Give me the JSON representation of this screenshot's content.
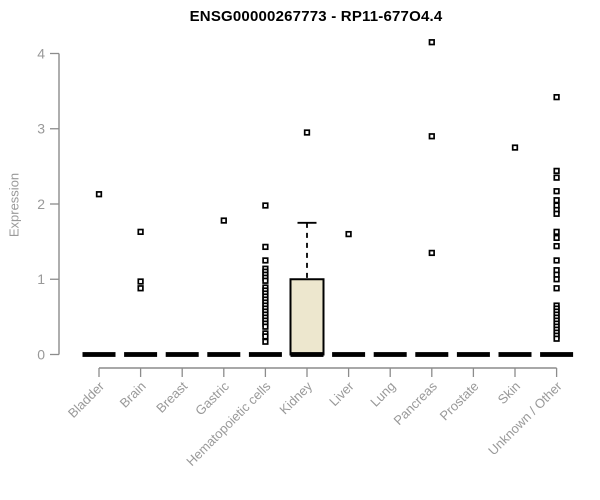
{
  "title": "ENSG00000267773 - RP11-677O4.4",
  "chart_data": {
    "type": "boxplot",
    "title": "ENSG00000267773 - RP11-677O4.4",
    "xlabel": "",
    "ylabel": "Expression",
    "ylim": [
      0,
      4.2
    ],
    "yticks": [
      0,
      1,
      2,
      3,
      4
    ],
    "grid": false,
    "legend": false,
    "categories": [
      "Bladder",
      "Brain",
      "Breast",
      "Gastric",
      "Hematopoietic cells",
      "Kidney",
      "Liver",
      "Lung",
      "Pancreas",
      "Prostate",
      "Skin",
      "Unknown / Other"
    ],
    "boxes": [
      {
        "category": "Bladder",
        "median": 0,
        "q1": 0,
        "q3": 0,
        "whisker_low": 0,
        "whisker_high": 0,
        "outliers": [
          2.13
        ]
      },
      {
        "category": "Brain",
        "median": 0,
        "q1": 0,
        "q3": 0,
        "whisker_low": 0,
        "whisker_high": 0,
        "outliers": [
          1.63,
          0.97,
          0.88
        ]
      },
      {
        "category": "Breast",
        "median": 0,
        "q1": 0,
        "q3": 0,
        "whisker_low": 0,
        "whisker_high": 0,
        "outliers": []
      },
      {
        "category": "Gastric",
        "median": 0,
        "q1": 0,
        "q3": 0,
        "whisker_low": 0,
        "whisker_high": 0,
        "outliers": [
          1.78
        ]
      },
      {
        "category": "Hematopoietic cells",
        "median": 0,
        "q1": 0,
        "q3": 0,
        "whisker_low": 0,
        "whisker_high": 0,
        "outliers": [
          1.98,
          1.43,
          1.25,
          1.14,
          1.1,
          1.06,
          1.02,
          0.98,
          0.89,
          0.85,
          0.81,
          0.77,
          0.73,
          0.69,
          0.65,
          0.61,
          0.57,
          0.53,
          0.49,
          0.45,
          0.41,
          0.37,
          0.28,
          0.24,
          0.17
        ]
      },
      {
        "category": "Kidney",
        "median": 0,
        "q1": 0,
        "q3": 1.0,
        "whisker_low": 0,
        "whisker_high": 1.75,
        "outliers": [
          2.95
        ]
      },
      {
        "category": "Liver",
        "median": 0,
        "q1": 0,
        "q3": 0,
        "whisker_low": 0,
        "whisker_high": 0,
        "outliers": [
          1.6
        ]
      },
      {
        "category": "Lung",
        "median": 0,
        "q1": 0,
        "q3": 0,
        "whisker_low": 0,
        "whisker_high": 0,
        "outliers": []
      },
      {
        "category": "Pancreas",
        "median": 0,
        "q1": 0,
        "q3": 0,
        "whisker_low": 0,
        "whisker_high": 0,
        "outliers": [
          4.15,
          2.9,
          1.35
        ]
      },
      {
        "category": "Prostate",
        "median": 0,
        "q1": 0,
        "q3": 0,
        "whisker_low": 0,
        "whisker_high": 0,
        "outliers": []
      },
      {
        "category": "Skin",
        "median": 0,
        "q1": 0,
        "q3": 0,
        "whisker_low": 0,
        "whisker_high": 0,
        "outliers": [
          2.75
        ]
      },
      {
        "category": "Unknown / Other",
        "median": 0,
        "q1": 0,
        "q3": 0,
        "whisker_low": 0,
        "whisker_high": 0,
        "outliers": [
          3.42,
          2.44,
          2.35,
          2.17,
          2.05,
          1.98,
          1.92,
          1.87,
          1.63,
          1.55,
          1.44,
          1.25,
          1.12,
          1.06,
          1.0,
          0.88,
          0.65,
          0.61,
          0.57,
          0.53,
          0.49,
          0.45,
          0.41,
          0.37,
          0.33,
          0.29,
          0.25,
          0.21
        ]
      }
    ],
    "colors": {
      "box_fill": "#EDE7CE",
      "box_border": "#000000",
      "median": "#000000",
      "marker": "#000000",
      "marker_fill": "#FFFFFF",
      "axis": "#8C8C8C",
      "tick_label": "#999999",
      "title": "#000000"
    }
  }
}
